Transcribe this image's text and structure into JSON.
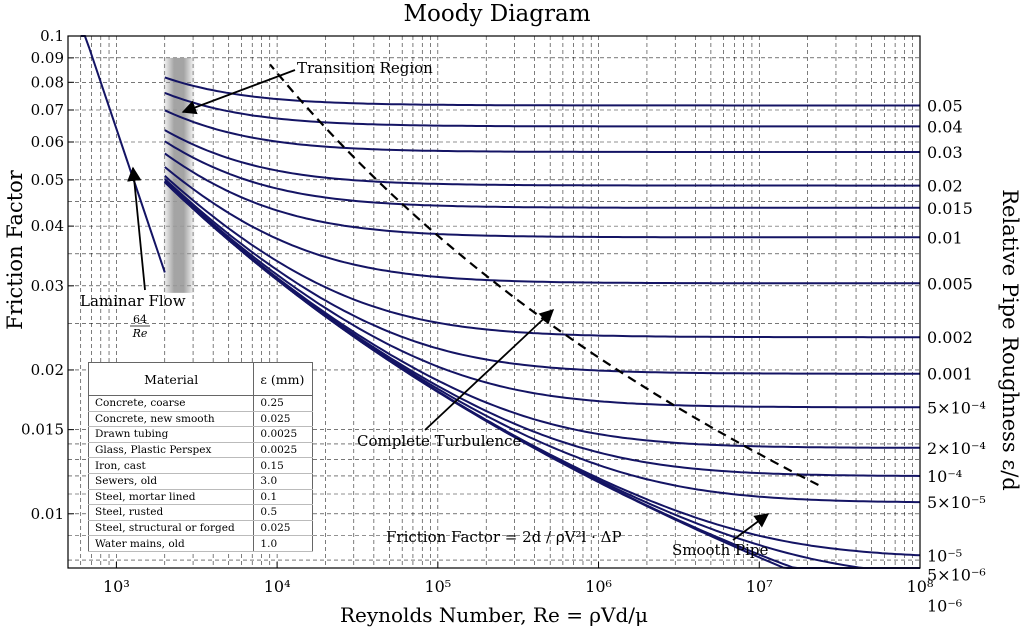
{
  "chart_data": {
    "type": "line",
    "title": "Moody Diagram",
    "xlabel": "Reynolds Number, Re = ρVd/μ",
    "ylabel": "Friction Factor",
    "y2label": "Relative Pipe Roughness ε/d",
    "xscale": "log",
    "yscale": "log",
    "xlim": [
      500,
      100000000
    ],
    "ylim": [
      0.0077,
      0.1
    ],
    "grid": true,
    "x_ticks": [
      {
        "value": 1000,
        "label": "10³"
      },
      {
        "value": 10000,
        "label": "10⁴"
      },
      {
        "value": 100000,
        "label": "10⁵"
      },
      {
        "value": 1000000,
        "label": "10⁶"
      },
      {
        "value": 10000000,
        "label": "10⁷"
      },
      {
        "value": 100000000,
        "label": "10⁸"
      }
    ],
    "y_ticks": [
      {
        "value": 0.01,
        "label": "0.01"
      },
      {
        "value": 0.015,
        "label": "0.015"
      },
      {
        "value": 0.02,
        "label": "0.02"
      },
      {
        "value": 0.03,
        "label": "0.03"
      },
      {
        "value": 0.04,
        "label": "0.04"
      },
      {
        "value": 0.05,
        "label": "0.05"
      },
      {
        "value": 0.06,
        "label": "0.06"
      },
      {
        "value": 0.07,
        "label": "0.07"
      },
      {
        "value": 0.08,
        "label": "0.08"
      },
      {
        "value": 0.09,
        "label": "0.09"
      },
      {
        "value": 0.1,
        "label": "0.1"
      }
    ],
    "laminar_flow": {
      "label": "Laminar Flow",
      "formula_num": "64",
      "formula_den": "Re",
      "re_range": [
        600,
        2000
      ]
    },
    "transition_region": {
      "label": "Transition Region",
      "re_range": [
        2000,
        3000
      ]
    },
    "complete_turbulence_label": "Complete Turbulence",
    "smooth_pipe_label": "Smooth Pipe",
    "friction_factor_formula": "Friction Factor = 2d / ρV²l · ΔP",
    "re_start": 2000,
    "roughness_series": [
      {
        "eps_d": 0.05,
        "label": "0.05"
      },
      {
        "eps_d": 0.04,
        "label": "0.04"
      },
      {
        "eps_d": 0.03,
        "label": "0.03"
      },
      {
        "eps_d": 0.02,
        "label": "0.02"
      },
      {
        "eps_d": 0.015,
        "label": "0.015"
      },
      {
        "eps_d": 0.01,
        "label": "0.01"
      },
      {
        "eps_d": 0.005,
        "label": "0.005"
      },
      {
        "eps_d": 0.002,
        "label": "0.002"
      },
      {
        "eps_d": 0.001,
        "label": "0.001"
      },
      {
        "eps_d": 0.0005,
        "label": "5×10⁻⁴"
      },
      {
        "eps_d": 0.0002,
        "label": "2×10⁻⁴"
      },
      {
        "eps_d": 0.0001,
        "label": "10⁻⁴"
      },
      {
        "eps_d": 5e-05,
        "label": "5×10⁻⁵"
      },
      {
        "eps_d": 1e-05,
        "label": "10⁻⁵"
      },
      {
        "eps_d": 5e-06,
        "label": "5×10⁻⁶"
      },
      {
        "eps_d": 1e-06,
        "label": "10⁻⁶"
      },
      {
        "eps_d": 0,
        "label": ""
      }
    ],
    "colors": {
      "curve": "#141464",
      "turbulence_boundary": "#000000",
      "transition_band": "#9a9a9a",
      "grid": "#000000"
    }
  },
  "material_table": {
    "header": {
      "material": "Material",
      "epsilon": "ε (mm)"
    },
    "rows": [
      {
        "material": "Concrete, coarse",
        "epsilon": "0.25"
      },
      {
        "material": "Concrete, new smooth",
        "epsilon": "0.025"
      },
      {
        "material": "Drawn tubing",
        "epsilon": "0.0025"
      },
      {
        "material": "Glass, Plastic Perspex",
        "epsilon": "0.0025"
      },
      {
        "material": "Iron, cast",
        "epsilon": "0.15"
      },
      {
        "material": "Sewers, old",
        "epsilon": "3.0"
      },
      {
        "material": "Steel, mortar lined",
        "epsilon": "0.1"
      },
      {
        "material": "Steel, rusted",
        "epsilon": "0.5"
      },
      {
        "material": "Steel, structural or forged",
        "epsilon": "0.025"
      },
      {
        "material": "Water mains, old",
        "epsilon": "1.0"
      }
    ]
  }
}
